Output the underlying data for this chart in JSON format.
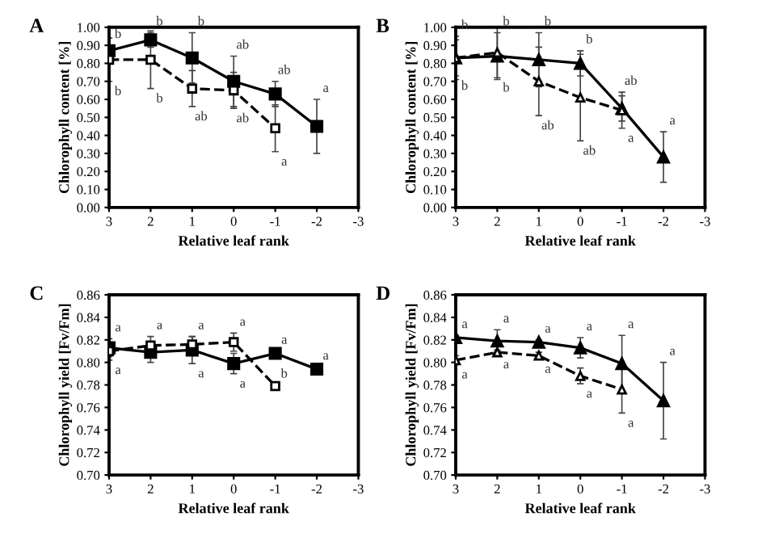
{
  "chart_data": [
    {
      "type": "line",
      "title": "A",
      "xlabel": "Relative leaf rank",
      "ylabel": "Chlorophyll content [%]",
      "x": [
        3,
        2,
        1,
        0,
        -1,
        -2
      ],
      "xlim": [
        3,
        -3
      ],
      "xticks": [
        3,
        2,
        1,
        0,
        {
          "value": -1,
          "label": "-1"
        },
        {
          "value": -2,
          "label": "-2"
        },
        {
          "value": -3,
          "label": "-3"
        }
      ],
      "ylim": [
        0,
        1
      ],
      "yticks": [
        {
          "value": 0,
          "label": "0.00"
        },
        {
          "value": 0.1,
          "label": "0.10"
        },
        {
          "value": 0.2,
          "label": "0.20"
        },
        {
          "value": 0.3,
          "label": "0.30"
        },
        {
          "value": 0.4,
          "label": "0.40"
        },
        {
          "value": 0.5,
          "label": "0.50"
        },
        {
          "value": 0.6,
          "label": "0.60"
        },
        {
          "value": 0.7,
          "label": "0.70"
        },
        {
          "value": 0.8,
          "label": "0.80"
        },
        {
          "value": 0.9,
          "label": "0.90"
        },
        {
          "value": 1,
          "label": "1.00"
        }
      ],
      "grid": false,
      "legend": false,
      "series": [
        {
          "color": "#000000",
          "marker": "square",
          "line_style": "solid",
          "values": [
            0.87,
            0.93,
            0.83,
            0.7,
            0.63,
            0.45
          ],
          "errors": [
            0.03,
            0.04,
            0.14,
            0.14,
            0.07,
            0.15
          ]
        },
        {
          "color": "#000000",
          "marker": "square",
          "line_style": "dashed",
          "values": [
            0.82,
            0.82,
            0.66,
            0.65,
            0.44,
            null
          ],
          "errors": [
            0.12,
            0.16,
            0.1,
            0.1,
            0.13,
            null
          ]
        }
      ],
      "annotations": [
        {
          "text": "b",
          "x": 3,
          "y": 0.9
        },
        {
          "text": "b",
          "x": 2,
          "y": 0.97
        },
        {
          "text": "b",
          "x": 1,
          "y": 0.97
        },
        {
          "text": "ab",
          "x": 0,
          "y": 0.84
        },
        {
          "text": "ab",
          "x": -1,
          "y": 0.7
        },
        {
          "text": "a",
          "x": -2,
          "y": 0.6
        },
        {
          "text": "b",
          "x": 3,
          "y": 0.7
        },
        {
          "text": "b",
          "x": 2,
          "y": 0.66
        },
        {
          "text": "ab",
          "x": 1,
          "y": 0.56
        },
        {
          "text": "ab",
          "x": 0,
          "y": 0.55
        },
        {
          "text": "a",
          "x": -1,
          "y": 0.31
        }
      ]
    },
    {
      "type": "line",
      "title": "B",
      "xlabel": "Relative leaf rank",
      "ylabel": "Chlorophyll content [%]",
      "x": [
        3,
        2,
        1,
        0,
        -1,
        -2
      ],
      "xlim": [
        3,
        -3
      ],
      "xticks": [
        3,
        2,
        1,
        0,
        {
          "value": -1,
          "label": "-1"
        },
        {
          "value": -2,
          "label": "-2"
        },
        {
          "value": -3,
          "label": "-3"
        }
      ],
      "ylim": [
        0,
        1
      ],
      "yticks": [
        {
          "value": 0,
          "label": "0.00"
        },
        {
          "value": 0.1,
          "label": "0.10"
        },
        {
          "value": 0.2,
          "label": "0.20"
        },
        {
          "value": 0.3,
          "label": "0.30"
        },
        {
          "value": 0.4,
          "label": "0.40"
        },
        {
          "value": 0.5,
          "label": "0.50"
        },
        {
          "value": 0.6,
          "label": "0.60"
        },
        {
          "value": 0.7,
          "label": "0.70"
        },
        {
          "value": 0.8,
          "label": "0.80"
        },
        {
          "value": 0.9,
          "label": "0.90"
        },
        {
          "value": 1,
          "label": "1.00"
        }
      ],
      "grid": false,
      "legend": false,
      "series": [
        {
          "color": "#000000",
          "marker": "triangle",
          "line_style": "solid",
          "values": [
            0.83,
            0.84,
            0.82,
            0.8,
            0.55,
            0.28
          ],
          "errors": [
            0.12,
            0.13,
            0.15,
            0.07,
            0.07,
            0.14
          ]
        },
        {
          "color": "#000000",
          "marker": "triangle",
          "line_style": "dashed",
          "values": [
            0.83,
            0.86,
            0.7,
            0.61,
            0.54,
            null
          ],
          "errors": [
            0.1,
            0.14,
            0.19,
            0.24,
            0.1,
            null
          ]
        }
      ],
      "annotations": [
        {
          "text": "b",
          "x": 3,
          "y": 0.95
        },
        {
          "text": "b",
          "x": 3,
          "y": 0.73
        },
        {
          "text": "b",
          "x": 2,
          "y": 0.97
        },
        {
          "text": "b",
          "x": 2,
          "y": 0.72
        },
        {
          "text": "b",
          "x": 1,
          "y": 0.97
        },
        {
          "text": "ab",
          "x": 1,
          "y": 0.51
        },
        {
          "text": "b",
          "x": 0,
          "y": 0.87
        },
        {
          "text": "ab",
          "x": 0,
          "y": 0.37
        },
        {
          "text": "ab",
          "x": -1,
          "y": 0.64
        },
        {
          "text": "a",
          "x": -1,
          "y": 0.44
        },
        {
          "text": "a",
          "x": -2,
          "y": 0.42
        }
      ]
    },
    {
      "type": "line",
      "title": "C",
      "xlabel": "Relative leaf rank",
      "ylabel": "Chlorophyll yield [Fv/Fm]",
      "x": [
        3,
        2,
        1,
        0,
        -1,
        -2
      ],
      "xlim": [
        3,
        -3
      ],
      "xticks": [
        3,
        2,
        1,
        0,
        {
          "value": -1,
          "label": "-1"
        },
        {
          "value": -2,
          "label": "-2"
        },
        {
          "value": -3,
          "label": "-3"
        }
      ],
      "ylim": [
        0.7,
        0.86
      ],
      "yticks": [
        {
          "value": 0.7,
          "label": "0.70"
        },
        {
          "value": 0.72,
          "label": "0.72"
        },
        {
          "value": 0.74,
          "label": "0.74"
        },
        {
          "value": 0.76,
          "label": "0.76"
        },
        {
          "value": 0.78,
          "label": "0.78"
        },
        {
          "value": 0.8,
          "label": "0.80"
        },
        {
          "value": 0.82,
          "label": "0.82"
        },
        {
          "value": 0.84,
          "label": "0.84"
        },
        {
          "value": 0.86,
          "label": "0.86"
        }
      ],
      "grid": false,
      "legend": false,
      "series": [
        {
          "color": "#000000",
          "marker": "square",
          "line_style": "solid",
          "values": [
            0.813,
            0.809,
            0.811,
            0.799,
            0.808,
            0.794
          ],
          "errors": [
            0.008,
            0.009,
            0.012,
            0.009,
            0.002,
            0.002
          ]
        },
        {
          "color": "#000000",
          "marker": "square",
          "line_style": "dashed",
          "values": [
            0.81,
            0.815,
            0.816,
            0.818,
            0.779,
            null
          ],
          "errors": [
            0.008,
            0.008,
            0.007,
            0.008,
            0.001,
            null
          ]
        }
      ],
      "annotations": [
        {
          "text": "a",
          "x": 3,
          "y": 0.821
        },
        {
          "text": "a",
          "x": 3,
          "y": 0.802
        },
        {
          "text": "a",
          "x": 2,
          "y": 0.823
        },
        {
          "text": "a",
          "x": 1,
          "y": 0.823
        },
        {
          "text": "a",
          "x": 1,
          "y": 0.799
        },
        {
          "text": "a",
          "x": 0,
          "y": 0.826
        },
        {
          "text": "a",
          "x": 0,
          "y": 0.79
        },
        {
          "text": "a",
          "x": -1,
          "y": 0.81
        },
        {
          "text": "b",
          "x": -1,
          "y": 0.78
        },
        {
          "text": "a",
          "x": -2,
          "y": 0.796
        }
      ]
    },
    {
      "type": "line",
      "title": "D",
      "xlabel": "Relative leaf rank",
      "ylabel": "Chlorophyll yield [Fv/Fm]",
      "x": [
        3,
        2,
        1,
        0,
        -1,
        -2
      ],
      "xlim": [
        3,
        -3
      ],
      "xticks": [
        3,
        2,
        1,
        0,
        {
          "value": -1,
          "label": "-1"
        },
        {
          "value": -2,
          "label": "-2"
        },
        {
          "value": -3,
          "label": "-3"
        }
      ],
      "ylim": [
        0.7,
        0.86
      ],
      "yticks": [
        {
          "value": 0.7,
          "label": "0.70"
        },
        {
          "value": 0.72,
          "label": "0.72"
        },
        {
          "value": 0.74,
          "label": "0.74"
        },
        {
          "value": 0.76,
          "label": "0.76"
        },
        {
          "value": 0.78,
          "label": "0.78"
        },
        {
          "value": 0.8,
          "label": "0.80"
        },
        {
          "value": 0.82,
          "label": "0.82"
        },
        {
          "value": 0.84,
          "label": "0.84"
        },
        {
          "value": 0.86,
          "label": "0.86"
        }
      ],
      "grid": false,
      "legend": false,
      "series": [
        {
          "color": "#000000",
          "marker": "triangle",
          "line_style": "solid",
          "values": [
            0.822,
            0.819,
            0.818,
            0.813,
            0.799,
            0.766
          ],
          "errors": [
            0.002,
            0.01,
            0.002,
            0.009,
            0.025,
            0.034
          ]
        },
        {
          "color": "#000000",
          "marker": "triangle",
          "line_style": "dashed",
          "values": [
            0.802,
            0.809,
            0.806,
            0.788,
            0.776,
            null
          ],
          "errors": [
            0.004,
            0.002,
            0.003,
            0.007,
            0.021,
            null
          ]
        }
      ],
      "annotations": [
        {
          "text": "a",
          "x": 3,
          "y": 0.824
        },
        {
          "text": "a",
          "x": 3,
          "y": 0.798
        },
        {
          "text": "a",
          "x": 2,
          "y": 0.829
        },
        {
          "text": "a",
          "x": 2,
          "y": 0.807
        },
        {
          "text": "a",
          "x": 1,
          "y": 0.82
        },
        {
          "text": "a",
          "x": 1,
          "y": 0.803
        },
        {
          "text": "a",
          "x": 0,
          "y": 0.822
        },
        {
          "text": "a",
          "x": 0,
          "y": 0.781
        },
        {
          "text": "a",
          "x": -1,
          "y": 0.824
        },
        {
          "text": "a",
          "x": -1,
          "y": 0.755
        },
        {
          "text": "a",
          "x": -2,
          "y": 0.8
        }
      ]
    }
  ]
}
